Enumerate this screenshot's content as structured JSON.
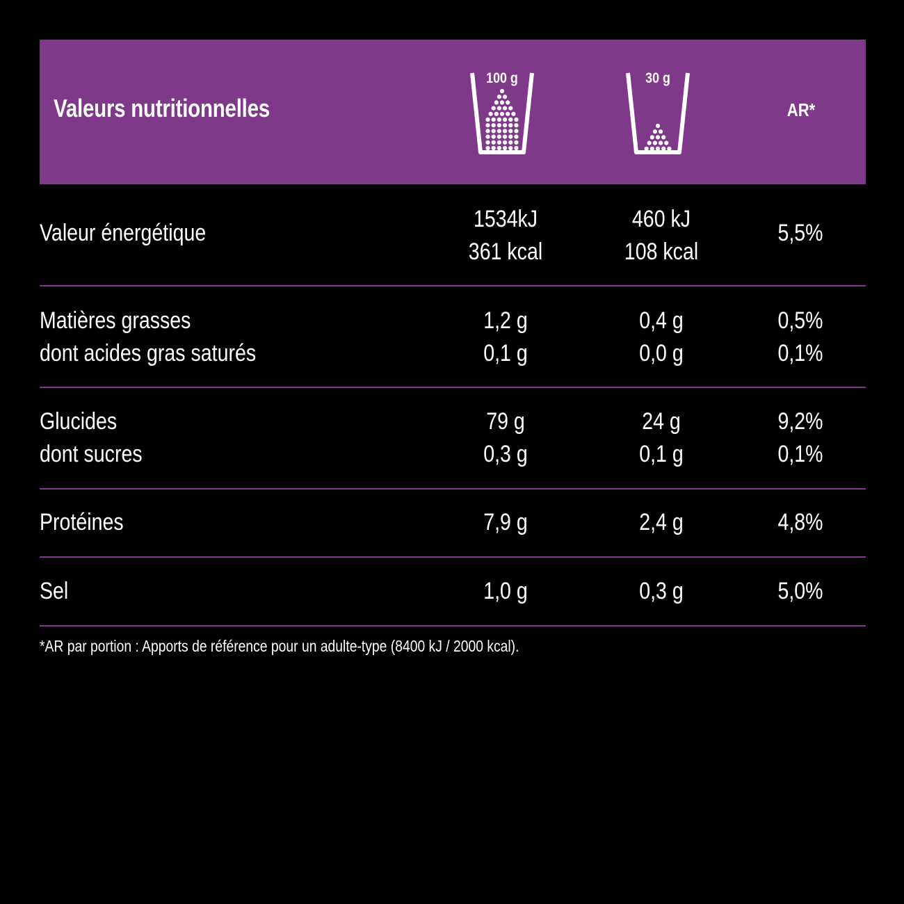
{
  "header": {
    "title": "Valeurs nutritionnelles",
    "col_100": "100 g",
    "col_30": "30 g",
    "col_ar": "AR*",
    "bg_color": "#7e3a88",
    "icons": [
      "cup-full-icon",
      "cup-portion-icon"
    ]
  },
  "rows": [
    {
      "labels": [
        "Valeur énergétique"
      ],
      "v100": [
        "1534kJ",
        "361 kcal"
      ],
      "v30": [
        "460 kJ",
        "108 kcal"
      ],
      "ar": [
        "5,5%"
      ]
    },
    {
      "labels": [
        "Matières grasses",
        "dont acides gras saturés"
      ],
      "v100": [
        "1,2 g",
        "0,1 g"
      ],
      "v30": [
        "0,4 g",
        "0,0 g"
      ],
      "ar": [
        "0,5%",
        "0,1%"
      ]
    },
    {
      "labels": [
        "Glucides",
        "dont sucres"
      ],
      "v100": [
        "79 g",
        "0,3 g"
      ],
      "v30": [
        "24 g",
        "0,1 g"
      ],
      "ar": [
        "9,2%",
        "0,1%"
      ]
    },
    {
      "labels": [
        "Protéines"
      ],
      "v100": [
        "7,9 g"
      ],
      "v30": [
        "2,4 g"
      ],
      "ar": [
        "4,8%"
      ]
    },
    {
      "labels": [
        "Sel"
      ],
      "v100": [
        "1,0 g"
      ],
      "v30": [
        "0,3 g"
      ],
      "ar": [
        "5,0%"
      ]
    }
  ],
  "footnote": "*AR par portion : Apports de référence pour un adulte-type (8400 kJ / 2000 kcal)."
}
